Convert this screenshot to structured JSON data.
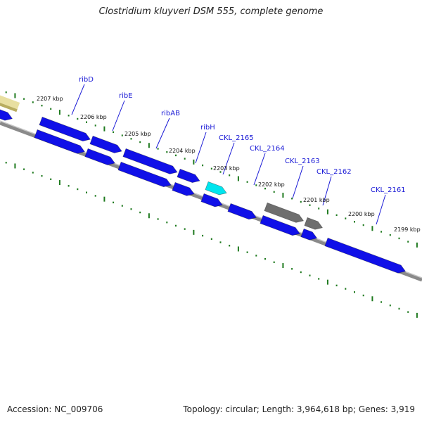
{
  "title": "Clostridium kluyveri DSM 555, complete genome",
  "footer": {
    "accession": "Accession: NC_009706",
    "summary": "Topology: circular; Length: 3,964,618 bp; Genes: 3,919"
  },
  "ruler_labels": [
    "2207 kbp",
    "2206 kbp",
    "2205 kbp",
    "2204 kbp",
    "2203 kbp",
    "2202 kbp",
    "2201 kbp",
    "2200 kbp",
    "2199 kbp"
  ],
  "gene_labels": [
    "ribD",
    "ribE",
    "ribAB",
    "ribH",
    "CKL_2165",
    "CKL_2164",
    "CKL_2163",
    "CKL_2162",
    "CKL_2161"
  ],
  "colors": {
    "cds": "#1010e8",
    "cds_highlight": "#00e5ee",
    "pseudo": "#6e6e6e",
    "unknown": "#e8dfa0",
    "backbone": "#8a8a8a",
    "ticks": "#1f7a1f",
    "label": "#1a1ad6"
  }
}
